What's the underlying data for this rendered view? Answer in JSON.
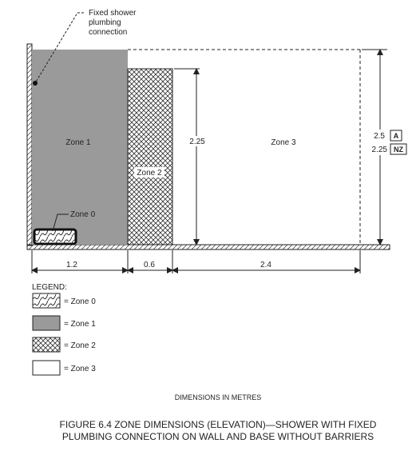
{
  "callouts": {
    "fixed_shower": [
      "Fixed shower",
      "plumbing",
      "connection"
    ],
    "zone0": "Zone 0"
  },
  "zones": {
    "zone1": "Zone 1",
    "zone2": "Zone 2",
    "zone3": "Zone 3"
  },
  "dimensions": {
    "vertical_225": "2.25",
    "right_a_value": "2.5",
    "right_a_badge": "A",
    "right_nz_value": "2.25",
    "right_nz_badge": "NZ",
    "horizontal": [
      "1.2",
      "0.6",
      "2.4"
    ]
  },
  "legend": {
    "title": "LEGEND:",
    "items": [
      "= Zone 0",
      "= Zone 1",
      "= Zone 2",
      "= Zone 3"
    ]
  },
  "units_note": "DIMENSIONS IN METRES",
  "caption": [
    "FIGURE  6.4   ZONE DIMENSIONS (ELEVATION)—SHOWER WITH FIXED",
    "PLUMBING CONNECTION ON WALL AND BASE WITHOUT BARRIERS"
  ],
  "colors": {
    "zone1_fill": "#9a9a9a",
    "line": "#222222"
  }
}
